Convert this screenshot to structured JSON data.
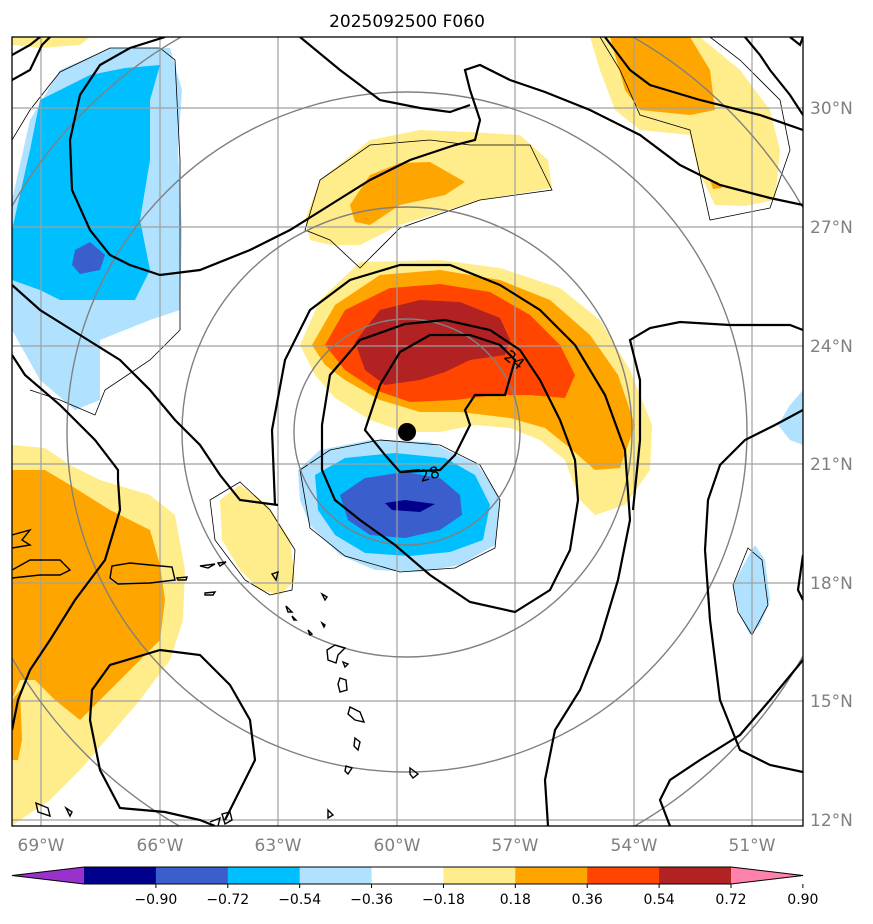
{
  "chart_data": {
    "type": "heatmap",
    "title": "2025092500 F060",
    "x_ticks": [
      "69°W",
      "66°W",
      "63°W",
      "60°W",
      "57°W",
      "54°W",
      "51°W"
    ],
    "y_ticks": [
      "30°N",
      "27°N",
      "24°N",
      "21°N",
      "18°N",
      "15°N",
      "12°N"
    ],
    "xlim": [
      -69.2,
      -49.2
    ],
    "ylim": [
      11.9,
      31.8
    ],
    "grid": true,
    "colorbar": {
      "ticks": [
        "−0.90",
        "−0.72",
        "−0.54",
        "−0.36",
        "−0.18",
        "0.18",
        "0.36",
        "0.54",
        "0.72",
        "0.90"
      ],
      "colors": [
        "#9932cc",
        "#00008b",
        "#3a5fcd",
        "#00bfff",
        "#b0e2ff",
        "#ffffff",
        "#ffec8b",
        "#ffa500",
        "#ff4500",
        "#b22222",
        "#ff82ab"
      ]
    },
    "contour_labels": [
      "24",
      "28"
    ],
    "center_marker": {
      "lon": -59.8,
      "lat": 21.8
    }
  }
}
